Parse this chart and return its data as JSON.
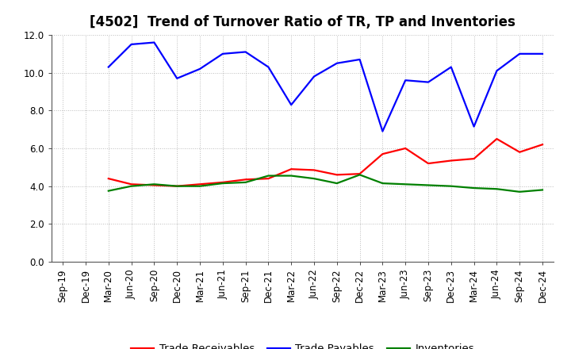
{
  "title": "[4502]  Trend of Turnover Ratio of TR, TP and Inventories",
  "x_labels": [
    "Sep-19",
    "Dec-19",
    "Mar-20",
    "Jun-20",
    "Sep-20",
    "Dec-20",
    "Mar-21",
    "Jun-21",
    "Sep-21",
    "Dec-21",
    "Mar-22",
    "Jun-22",
    "Sep-22",
    "Dec-22",
    "Mar-23",
    "Jun-23",
    "Sep-23",
    "Dec-23",
    "Mar-24",
    "Jun-24",
    "Sep-24",
    "Dec-24"
  ],
  "trade_receivables": [
    null,
    null,
    4.4,
    4.1,
    4.05,
    4.0,
    4.1,
    4.2,
    4.35,
    4.4,
    4.9,
    4.85,
    4.6,
    4.65,
    5.7,
    6.0,
    5.2,
    5.35,
    5.45,
    6.5,
    5.8,
    6.2
  ],
  "trade_payables": [
    null,
    null,
    10.3,
    11.5,
    11.6,
    9.7,
    10.2,
    11.0,
    11.1,
    10.3,
    8.3,
    9.8,
    10.5,
    10.7,
    6.9,
    9.6,
    9.5,
    10.3,
    7.15,
    10.1,
    11.0,
    11.0
  ],
  "inventories": [
    null,
    null,
    3.75,
    4.0,
    4.1,
    4.0,
    4.0,
    4.15,
    4.2,
    4.55,
    4.55,
    4.4,
    4.15,
    4.6,
    4.15,
    4.1,
    4.05,
    4.0,
    3.9,
    3.85,
    3.7,
    3.8
  ],
  "tr_color": "#ff0000",
  "tp_color": "#0000ff",
  "inv_color": "#008000",
  "ylim": [
    0,
    12.0
  ],
  "yticks": [
    0.0,
    2.0,
    4.0,
    6.0,
    8.0,
    10.0,
    12.0
  ],
  "legend_tr": "Trade Receivables",
  "legend_tp": "Trade Payables",
  "legend_inv": "Inventories",
  "bg_color": "#ffffff",
  "grid_color": "#aaaaaa",
  "title_fontsize": 12,
  "axis_fontsize": 8.5,
  "legend_fontsize": 9.5,
  "linewidth": 1.6
}
